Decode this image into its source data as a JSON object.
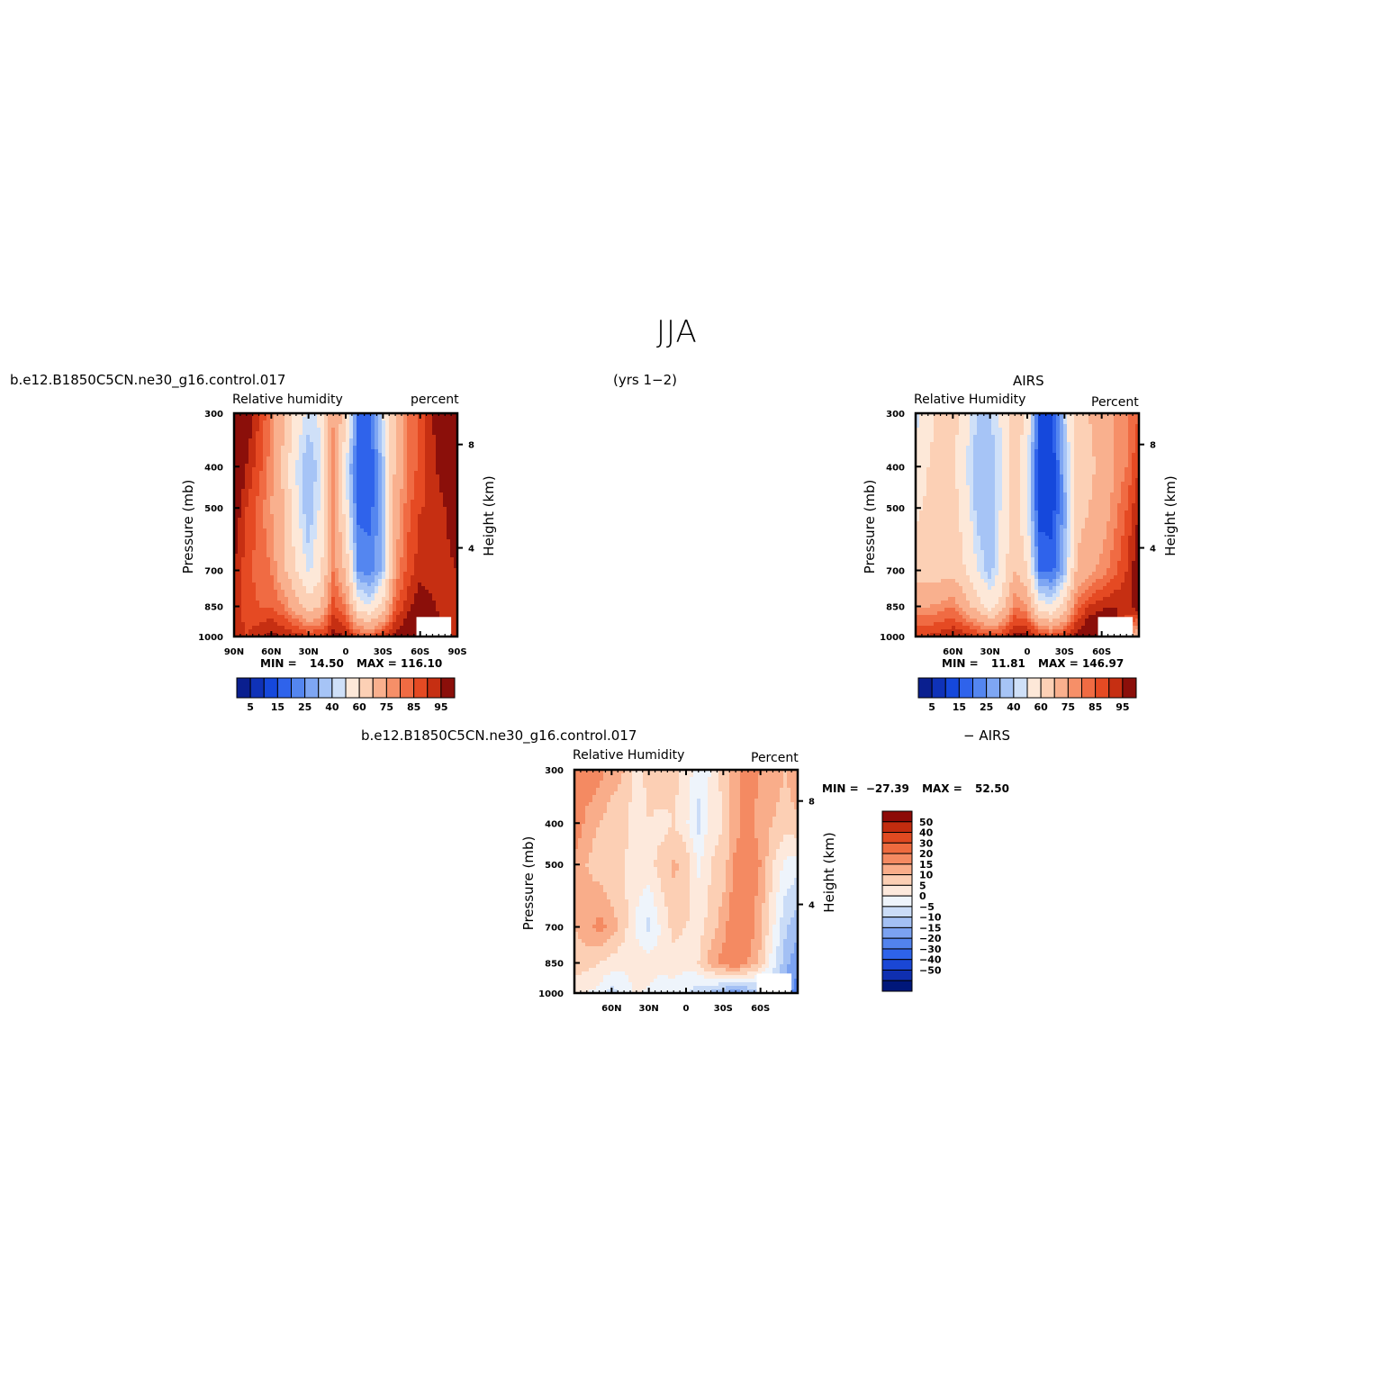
{
  "page": {
    "title": "JJA",
    "years": "(yrs 1−2)",
    "case_name": "b.e12.B1850C5CN.ne30_g16.control.017",
    "obs_name": "AIRS",
    "diff_name": "b.e12.B1850C5CN.ne30_g16.control.017",
    "diff_obs": "− AIRS"
  },
  "colors": {
    "seq": [
      "#0a1f8f",
      "#0f32b8",
      "#1548dc",
      "#2f63eb",
      "#5486f0",
      "#7ea6f3",
      "#a6c4f6",
      "#cfe0f8",
      "#fde8d8",
      "#fcd0b5",
      "#f9b08e",
      "#f68f68",
      "#f06b43",
      "#e54a23",
      "#c62f12",
      "#8b0f0a"
    ],
    "diff": [
      "#00177a",
      "#0f2fb0",
      "#1a47d5",
      "#2e63ea",
      "#5283ee",
      "#7ba2f1",
      "#a3c0f4",
      "#cadcf7",
      "#eef4fb",
      "#fde9dc",
      "#fccfb4",
      "#f9ad8a",
      "#f48a62",
      "#ee6b3f",
      "#e04a21",
      "#c22c0f",
      "#8d0a07"
    ]
  },
  "chart_data": [
    {
      "id": "model",
      "type": "heatmap",
      "title_left": "Relative humidity",
      "title_right": "percent",
      "ylabel": "Pressure (mb)",
      "ylabel_right": "Height (km)",
      "x_ticks": [
        "90N",
        "60N",
        "30N",
        "0",
        "30S",
        "60S",
        "90S"
      ],
      "x_range": [
        90,
        -90
      ],
      "y_ticks": [
        300,
        400,
        500,
        700,
        850,
        1000
      ],
      "y_range": [
        1000,
        300
      ],
      "y_scale": "log",
      "y2_ticks": [
        4,
        8
      ],
      "min_label": "MIN =",
      "min": "14.50",
      "max_label": "MAX =",
      "max": "116.10",
      "colorbar_labels": [
        "5",
        "15",
        "25",
        "40",
        "60",
        "75",
        "85",
        "95"
      ],
      "levels": [
        5,
        10,
        15,
        20,
        25,
        30,
        35,
        40,
        50,
        60,
        70,
        75,
        80,
        85,
        90,
        95
      ],
      "bands": [
        {
          "lat": 90,
          "rh": [
            100,
            100,
            95,
            90,
            90,
            88
          ]
        },
        {
          "lat": 80,
          "rh": [
            95,
            90,
            85,
            82,
            82,
            85
          ]
        },
        {
          "lat": 70,
          "rh": [
            85,
            82,
            78,
            78,
            80,
            88
          ]
        },
        {
          "lat": 60,
          "rh": [
            75,
            72,
            70,
            75,
            80,
            92
          ]
        },
        {
          "lat": 50,
          "rh": [
            60,
            58,
            60,
            62,
            75,
            90
          ]
        },
        {
          "lat": 40,
          "rh": [
            45,
            40,
            42,
            50,
            65,
            88
          ]
        },
        {
          "lat": 30,
          "rh": [
            38,
            30,
            30,
            38,
            55,
            85
          ]
        },
        {
          "lat": 20,
          "rh": [
            42,
            38,
            42,
            48,
            60,
            85
          ]
        },
        {
          "lat": 10,
          "rh": [
            70,
            72,
            72,
            75,
            82,
            92
          ]
        },
        {
          "lat": 0,
          "rh": [
            55,
            40,
            45,
            58,
            75,
            90
          ]
        },
        {
          "lat": -10,
          "rh": [
            20,
            15,
            18,
            25,
            45,
            82
          ]
        },
        {
          "lat": -20,
          "rh": [
            20,
            15,
            18,
            22,
            40,
            80
          ]
        },
        {
          "lat": -30,
          "rh": [
            40,
            32,
            30,
            32,
            55,
            85
          ]
        },
        {
          "lat": -40,
          "rh": [
            60,
            62,
            65,
            70,
            80,
            92
          ]
        },
        {
          "lat": -50,
          "rh": [
            75,
            75,
            78,
            82,
            88,
            95
          ]
        },
        {
          "lat": -60,
          "rh": [
            82,
            82,
            85,
            88,
            95,
            100
          ]
        },
        {
          "lat": -70,
          "rh": [
            90,
            88,
            85,
            85,
            92,
            100
          ]
        },
        {
          "lat": -80,
          "rh": [
            98,
            95,
            90,
            88,
            85,
            85
          ]
        },
        {
          "lat": -90,
          "rh": [
            105,
            100,
            95,
            90,
            88,
            88
          ]
        }
      ]
    },
    {
      "id": "obs",
      "type": "heatmap",
      "title_top": "AIRS",
      "title_left": "Relative Humidity",
      "title_right": "Percent",
      "ylabel": "Pressure (mb)",
      "ylabel_right": "Height (km)",
      "x_ticks": [
        "60N",
        "30N",
        "0",
        "30S",
        "60S"
      ],
      "x_range": [
        90,
        -90
      ],
      "y_ticks": [
        300,
        400,
        500,
        700,
        850,
        1000
      ],
      "y_range": [
        1000,
        300
      ],
      "y_scale": "log",
      "y2_ticks": [
        4,
        8
      ],
      "min_label": "MIN =",
      "min": "11.81",
      "max_label": "MAX =",
      "max": "146.97",
      "colorbar_labels": [
        "5",
        "15",
        "25",
        "40",
        "60",
        "75",
        "85",
        "95"
      ],
      "levels": [
        5,
        10,
        15,
        20,
        25,
        30,
        35,
        40,
        50,
        60,
        70,
        75,
        80,
        85,
        90,
        95
      ],
      "bands": [
        {
          "lat": 90,
          "rh": [
            38,
            42,
            48,
            55,
            70,
            85
          ]
        },
        {
          "lat": 80,
          "rh": [
            45,
            50,
            52,
            55,
            70,
            85
          ]
        },
        {
          "lat": 70,
          "rh": [
            55,
            55,
            55,
            55,
            72,
            88
          ]
        },
        {
          "lat": 60,
          "rh": [
            55,
            52,
            55,
            55,
            75,
            90
          ]
        },
        {
          "lat": 50,
          "rh": [
            45,
            40,
            45,
            50,
            65,
            88
          ]
        },
        {
          "lat": 40,
          "rh": [
            35,
            30,
            32,
            40,
            55,
            85
          ]
        },
        {
          "lat": 30,
          "rh": [
            35,
            30,
            30,
            32,
            45,
            82
          ]
        },
        {
          "lat": 20,
          "rh": [
            42,
            40,
            42,
            45,
            55,
            85
          ]
        },
        {
          "lat": 10,
          "rh": [
            58,
            55,
            55,
            60,
            75,
            92
          ]
        },
        {
          "lat": 0,
          "rh": [
            48,
            40,
            40,
            50,
            70,
            92
          ]
        },
        {
          "lat": -10,
          "rh": [
            15,
            10,
            12,
            20,
            45,
            85
          ]
        },
        {
          "lat": -20,
          "rh": [
            15,
            10,
            12,
            18,
            40,
            82
          ]
        },
        {
          "lat": -30,
          "rh": [
            35,
            30,
            28,
            30,
            55,
            85
          ]
        },
        {
          "lat": -40,
          "rh": [
            55,
            55,
            55,
            62,
            78,
            92
          ]
        },
        {
          "lat": -50,
          "rh": [
            60,
            58,
            60,
            68,
            85,
            100
          ]
        },
        {
          "lat": -60,
          "rh": [
            65,
            62,
            65,
            72,
            88,
            105
          ]
        },
        {
          "lat": -70,
          "rh": [
            70,
            70,
            72,
            78,
            90,
            100
          ]
        },
        {
          "lat": -80,
          "rh": [
            75,
            75,
            80,
            85,
            88,
            75
          ]
        },
        {
          "lat": -90,
          "rh": [
            80,
            85,
            90,
            95,
            95,
            60
          ]
        }
      ]
    },
    {
      "id": "diff",
      "type": "heatmap",
      "title_left": "Relative Humidity",
      "title_right": "Percent",
      "ylabel": "Pressure (mb)",
      "ylabel_right": "Height (km)",
      "x_ticks": [
        "60N",
        "30N",
        "0",
        "30S",
        "60S"
      ],
      "x_range": [
        90,
        -90
      ],
      "y_ticks": [
        300,
        400,
        500,
        700,
        850,
        1000
      ],
      "y_range": [
        1000,
        300
      ],
      "y_scale": "log",
      "y2_ticks": [
        4,
        8
      ],
      "min_label": "MIN =",
      "min": "−27.39",
      "max_label": "MAX =",
      "max": "52.50",
      "colorbar_labels": [
        "50",
        "40",
        "30",
        "20",
        "15",
        "10",
        "5",
        "0",
        "−5",
        "−10",
        "−15",
        "−20",
        "−30",
        "−40",
        "−50"
      ],
      "levels": [
        -50,
        -40,
        -30,
        -20,
        -15,
        -10,
        -5,
        0,
        5,
        10,
        15,
        20,
        30,
        40,
        50
      ],
      "bands": [
        {
          "lat": 90,
          "rh": [
            30,
            25,
            18,
            15,
            12,
            8
          ]
        },
        {
          "lat": 80,
          "rh": [
            25,
            18,
            15,
            18,
            12,
            5
          ]
        },
        {
          "lat": 70,
          "rh": [
            22,
            15,
            12,
            22,
            10,
            3
          ]
        },
        {
          "lat": 60,
          "rh": [
            18,
            12,
            10,
            18,
            8,
            -3
          ]
        },
        {
          "lat": 50,
          "rh": [
            15,
            12,
            10,
            12,
            6,
            2
          ]
        },
        {
          "lat": 40,
          "rh": [
            8,
            6,
            8,
            4,
            8,
            6
          ]
        },
        {
          "lat": 30,
          "rh": [
            12,
            10,
            8,
            -2,
            8,
            4
          ]
        },
        {
          "lat": 20,
          "rh": [
            15,
            8,
            12,
            6,
            6,
            3
          ]
        },
        {
          "lat": 10,
          "rh": [
            12,
            10,
            16,
            12,
            8,
            2
          ]
        },
        {
          "lat": 0,
          "rh": [
            8,
            6,
            14,
            10,
            6,
            1
          ]
        },
        {
          "lat": -10,
          "rh": [
            2,
            -2,
            4,
            8,
            10,
            -4
          ]
        },
        {
          "lat": -20,
          "rh": [
            5,
            8,
            10,
            12,
            18,
            -6
          ]
        },
        {
          "lat": -30,
          "rh": [
            12,
            10,
            12,
            18,
            22,
            -10
          ]
        },
        {
          "lat": -40,
          "rh": [
            18,
            18,
            22,
            25,
            25,
            -14
          ]
        },
        {
          "lat": -50,
          "rh": [
            22,
            22,
            24,
            24,
            20,
            -10
          ]
        },
        {
          "lat": -60,
          "rh": [
            20,
            18,
            20,
            16,
            14,
            -8
          ]
        },
        {
          "lat": -70,
          "rh": [
            18,
            15,
            10,
            6,
            2,
            -6
          ]
        },
        {
          "lat": -80,
          "rh": [
            15,
            12,
            4,
            -4,
            -8,
            -12
          ]
        },
        {
          "lat": -90,
          "rh": [
            20,
            14,
            2,
            -8,
            -14,
            -18
          ]
        }
      ]
    }
  ]
}
